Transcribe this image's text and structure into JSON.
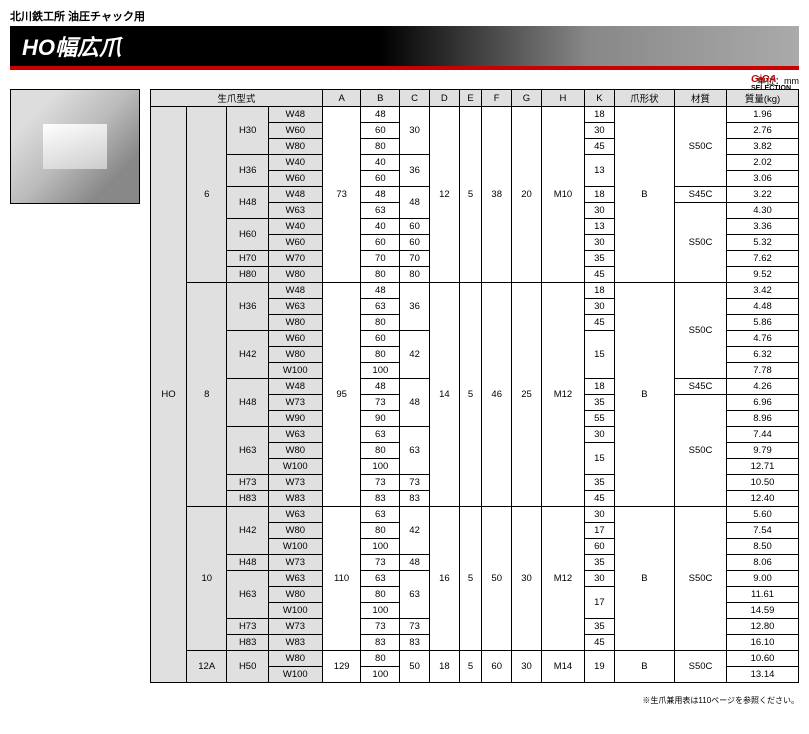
{
  "header": {
    "subtitle": "北川鉄工所 油圧チャック用",
    "title": "HO幅広爪",
    "logo_main": "GiGA",
    "logo_sub": "SELECTION",
    "unit": "単位：mm"
  },
  "columns": [
    "生爪型式",
    "A",
    "B",
    "C",
    "D",
    "E",
    "F",
    "G",
    "H",
    "K",
    "爪形状",
    "材質",
    "質量(kg)"
  ],
  "series": "HO",
  "groups": [
    {
      "size": "6",
      "A": "73",
      "D": "12",
      "E": "5",
      "F": "38",
      "G": "20",
      "Hcol": "M10",
      "shape": "B",
      "rows": [
        {
          "h": "H30",
          "hspan": 3,
          "w": "W48",
          "B": "48",
          "C": "30",
          "Cspan": 3,
          "K": "18",
          "mat": "S50C",
          "matspan": 5,
          "mass": "1.96"
        },
        {
          "w": "W60",
          "B": "60",
          "K": "30",
          "mass": "2.76"
        },
        {
          "w": "W80",
          "B": "80",
          "K": "45",
          "mass": "3.82"
        },
        {
          "h": "H36",
          "hspan": 2,
          "w": "W40",
          "B": "40",
          "C": "36",
          "Cspan": 2,
          "K": "13",
          "Kspan": 2,
          "mass": "2.02"
        },
        {
          "w": "W60",
          "B": "60",
          "mass": "3.06"
        },
        {
          "h": "H48",
          "hspan": 2,
          "w": "W48",
          "B": "48",
          "C": "48",
          "Cspan": 2,
          "K": "18",
          "mat": "S45C",
          "mass": "3.22"
        },
        {
          "w": "W63",
          "B": "63",
          "K": "30",
          "mat": "S50C",
          "matspan": 5,
          "mass": "4.30"
        },
        {
          "h": "H60",
          "hspan": 2,
          "w": "W40",
          "B": "40",
          "C": "60",
          "K": "13",
          "mass": "3.36"
        },
        {
          "w": "W60",
          "B": "60",
          "C": "60",
          "K": "30",
          "mass": "5.32"
        },
        {
          "h": "H70",
          "w": "W70",
          "B": "70",
          "C": "70",
          "K": "35",
          "mass": "7.62"
        },
        {
          "h": "H80",
          "w": "W80",
          "B": "80",
          "C": "80",
          "K": "45",
          "mass": "9.52"
        }
      ]
    },
    {
      "size": "8",
      "A": "95",
      "D": "14",
      "E": "5",
      "F": "46",
      "G": "25",
      "Hcol": "M12",
      "shape": "B",
      "rows": [
        {
          "h": "H36",
          "hspan": 3,
          "w": "W48",
          "B": "48",
          "C": "36",
          "Cspan": 3,
          "K": "18",
          "mat": "S50C",
          "matspan": 6,
          "mass": "3.42"
        },
        {
          "w": "W63",
          "B": "63",
          "K": "30",
          "mass": "4.48"
        },
        {
          "w": "W80",
          "B": "80",
          "K": "45",
          "mass": "5.86"
        },
        {
          "h": "H42",
          "hspan": 3,
          "w": "W60",
          "B": "60",
          "C": "42",
          "Cspan": 3,
          "K": "15",
          "Kspan": 3,
          "mass": "4.76"
        },
        {
          "w": "W80",
          "B": "80",
          "mass": "6.32"
        },
        {
          "w": "W100",
          "B": "100",
          "mass": "7.78"
        },
        {
          "h": "H48",
          "hspan": 3,
          "w": "W48",
          "B": "48",
          "C": "48",
          "Cspan": 3,
          "K": "18",
          "mat": "S45C",
          "mass": "4.26"
        },
        {
          "w": "W73",
          "B": "73",
          "K": "35",
          "mat": "S50C",
          "matspan": 7,
          "mass": "6.96"
        },
        {
          "w": "W90",
          "B": "90",
          "K": "55",
          "mass": "8.96"
        },
        {
          "h": "H63",
          "hspan": 3,
          "w": "W63",
          "B": "63",
          "C": "63",
          "Cspan": 3,
          "K": "30",
          "mass": "7.44"
        },
        {
          "w": "W80",
          "B": "80",
          "K": "15",
          "Kspan": 2,
          "mass": "9.79"
        },
        {
          "w": "W100",
          "B": "100",
          "mass": "12.71"
        },
        {
          "h": "H73",
          "w": "W73",
          "B": "73",
          "C": "73",
          "K": "35",
          "mass": "10.50"
        },
        {
          "h": "H83",
          "w": "W83",
          "B": "83",
          "C": "83",
          "K": "45",
          "mass": "12.40"
        }
      ]
    },
    {
      "size": "10",
      "A": "110",
      "D": "16",
      "E": "5",
      "F": "50",
      "G": "30",
      "Hcol": "M12",
      "shape": "B",
      "mat": "S50C",
      "rows": [
        {
          "h": "H42",
          "hspan": 3,
          "w": "W63",
          "B": "63",
          "C": "42",
          "Cspan": 3,
          "K": "30",
          "mass": "5.60"
        },
        {
          "w": "W80",
          "B": "80",
          "K": "17",
          "mass": "7.54"
        },
        {
          "w": "W100",
          "B": "100",
          "K": "60",
          "mass": "8.50"
        },
        {
          "h": "H48",
          "w": "W73",
          "B": "73",
          "C": "48",
          "K": "35",
          "mass": "8.06"
        },
        {
          "h": "H63",
          "hspan": 3,
          "w": "W63",
          "B": "63",
          "C": "63",
          "Cspan": 3,
          "K": "30",
          "mass": "9.00"
        },
        {
          "w": "W80",
          "B": "80",
          "K": "17",
          "Kspan": 2,
          "mass": "11.61"
        },
        {
          "w": "W100",
          "B": "100",
          "mass": "14.59"
        },
        {
          "h": "H73",
          "w": "W73",
          "B": "73",
          "C": "73",
          "K": "35",
          "mass": "12.80"
        },
        {
          "h": "H83",
          "w": "W83",
          "B": "83",
          "C": "83",
          "K": "45",
          "mass": "16.10"
        }
      ]
    },
    {
      "size": "12A",
      "A": "129",
      "D": "18",
      "E": "5",
      "F": "60",
      "G": "30",
      "Hcol": "M14",
      "shape": "B",
      "mat": "S50C",
      "rows": [
        {
          "h": "H50",
          "hspan": 2,
          "w": "W80",
          "B": "80",
          "C": "50",
          "Cspan": 2,
          "K": "19",
          "Kspan": 2,
          "mass": "10.60"
        },
        {
          "w": "W100",
          "B": "100",
          "mass": "13.14"
        }
      ]
    }
  ],
  "footnote": "※生爪兼用表は110ページを参照ください。"
}
